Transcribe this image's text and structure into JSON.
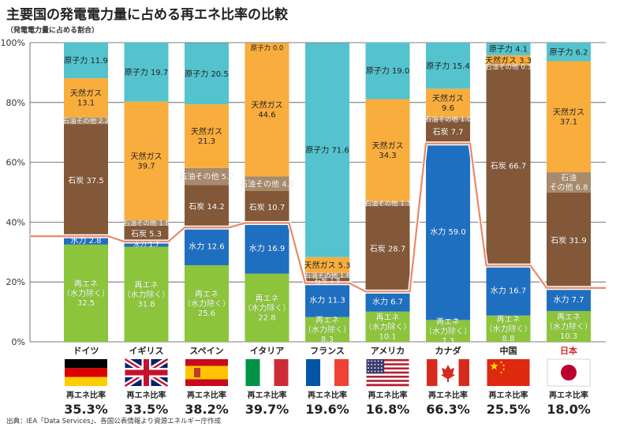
{
  "page": {
    "title": "主要国の発電電力量に占める再エネ比率の比較",
    "subtitle": "（発電電力量に占める割合）",
    "source": "出典：IEA「Data Services」、各国公表情報より資源エネルギー庁作成"
  },
  "chart_data": {
    "type": "bar",
    "stacked": true,
    "title": "主要国の発電電力量に占める再エネ比率の比較",
    "ylabel": "（発電電力量に占める割合）",
    "ylim": [
      0,
      100
    ],
    "yticks": [
      "0%",
      "20%",
      "40%",
      "60%",
      "80%",
      "100%"
    ],
    "categories": [
      "ドイツ",
      "イギリス",
      "スペイン",
      "イタリア",
      "フランス",
      "アメリカ",
      "カナダ",
      "中国",
      "日本"
    ],
    "highlight_category": "日本",
    "series": [
      {
        "name": "再エネ（水力除く）",
        "color": "#8cc43c",
        "values": [
          32.5,
          31.8,
          25.6,
          22.8,
          8.3,
          10.1,
          7.3,
          8.8,
          10.3
        ],
        "labels": [
          "再エネ\n（水力除く）\n32.5",
          "再エネ\n（水力除く）\n31.8",
          "再エネ\n（水力除く）\n25.6",
          "再エネ\n（水力除く）\n22.8",
          "再エネ\n（水力除く）\n8.3",
          "再エネ\n（水力除く）\n10.1",
          "再エネ\n（水力除く）\n7.3",
          "再エネ\n（水力除く）\n8.8",
          "再エネ\n（水力除く）\n10.3"
        ]
      },
      {
        "name": "水力",
        "color": "#1f6fc1",
        "values": [
          2.8,
          1.7,
          12.6,
          16.9,
          11.3,
          6.7,
          59.0,
          16.7,
          7.7
        ],
        "labels": [
          "水力 2.8",
          "水力 1.7",
          "水力 12.6",
          "水力 16.9",
          "水力 11.3",
          "水力 6.7",
          "水力 59.0",
          "水力 16.7",
          "水力 7.7"
        ]
      },
      {
        "name": "石炭",
        "color": "#825838",
        "values": [
          37.5,
          5.3,
          14.2,
          10.7,
          1.8,
          28.7,
          7.7,
          66.7,
          31.9
        ],
        "labels": [
          "石炭 37.5",
          "石炭 5.3",
          "石炭 14.2",
          "石炭 10.7",
          "石炭 1.8",
          "石炭 28.7",
          "石炭 7.7",
          "石炭 66.7",
          "石炭 31.9"
        ]
      },
      {
        "name": "石油その他",
        "color": "#a88a6c",
        "values": [
          2.2,
          1.8,
          5.7,
          4.9,
          1.6,
          1.3,
          1.0,
          0.3,
          6.8
        ],
        "labels": [
          "石油その他 2.2",
          "石油その他 1.8",
          "石油その他 5.7",
          "石油その他 4.9",
          "石油その他 1.6",
          "石油その他 1.3",
          "石油その他 1.0",
          "石油その他 0.3",
          "石油\nその他 6.8"
        ]
      },
      {
        "name": "天然ガス",
        "color": "#f9ad3d",
        "values": [
          13.1,
          39.7,
          21.3,
          44.6,
          5.3,
          34.3,
          9.6,
          3.3,
          37.1
        ],
        "labels": [
          "天然ガス\n13.1",
          "天然ガス\n39.7",
          "天然ガス\n21.3",
          "天然ガス\n44.6",
          "天然ガス 5.3",
          "天然ガス\n34.3",
          "天然ガス\n9.6",
          "天然ガス 3.3",
          "天然ガス\n37.1"
        ]
      },
      {
        "name": "原子力",
        "color": "#54c3cd",
        "values": [
          11.9,
          19.7,
          20.5,
          0.0,
          71.6,
          19.0,
          15.4,
          4.1,
          6.2
        ],
        "labels": [
          "原子力 11.9",
          "原子力 19.7",
          "原子力 20.5",
          "原子力 0.0",
          "原子力 71.6",
          "原子力 19.0",
          "原子力 15.4",
          "原子力 4.1",
          "原子力 6.2"
        ]
      }
    ],
    "renewable_ratio_label": "再エネ比率",
    "renewable_ratio": [
      "35.3%",
      "33.5%",
      "38.2%",
      "39.7%",
      "19.6%",
      "16.8%",
      "66.3%",
      "25.5%",
      "18.0%"
    ],
    "flags": [
      "germany-flag",
      "uk-flag",
      "spain-flag",
      "italy-flag",
      "france-flag",
      "usa-flag",
      "canada-flag",
      "china-flag",
      "japan-flag"
    ]
  }
}
